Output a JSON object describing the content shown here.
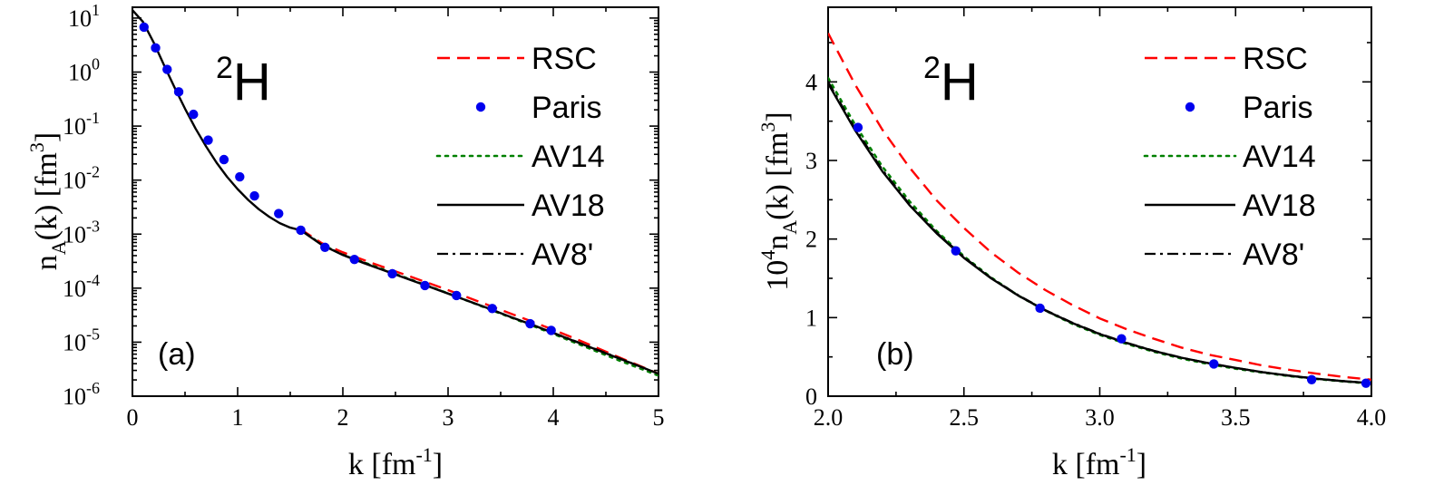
{
  "chart_data": [
    {
      "type": "line",
      "panel_label": "(a)",
      "nucleus": {
        "mass": "2",
        "symbol": "H"
      },
      "xlabel": {
        "base": "k [fm",
        "sup": "-1",
        "tail": "]"
      },
      "ylabel": {
        "parts": [
          "n",
          "A",
          "(k)  [fm",
          "3",
          "]"
        ]
      },
      "xlim": [
        0,
        5
      ],
      "ylim_log10": [
        -6,
        1.2
      ],
      "yscale": "log",
      "x_ticks": [
        "0",
        "1",
        "2",
        "3",
        "4",
        "5"
      ],
      "y_ticks": [
        {
          "base": "10",
          "exp": "1"
        },
        {
          "base": "10",
          "exp": "0"
        },
        {
          "base": "10",
          "exp": "-1"
        },
        {
          "base": "10",
          "exp": "-2"
        },
        {
          "base": "10",
          "exp": "-3"
        },
        {
          "base": "10",
          "exp": "-4"
        },
        {
          "base": "10",
          "exp": "-5"
        },
        {
          "base": "10",
          "exp": "-6"
        }
      ],
      "legend_position": "top-right",
      "series": [
        {
          "name": "RSC",
          "style": "dashed",
          "color": "#ff0000",
          "x": [
            1.6,
            1.8,
            2.0,
            2.2,
            2.4,
            2.6,
            2.8,
            3.0,
            3.2,
            3.4,
            3.6,
            3.8,
            4.0,
            4.2,
            4.4,
            4.6,
            4.8,
            5.0
          ],
          "y": [
            0.00123,
            0.00068,
            0.00046,
            0.00033,
            0.00024,
            0.000175,
            0.000127,
            9.2e-05,
            6.6e-05,
            4.7e-05,
            3.35e-05,
            2.4e-05,
            1.7e-05,
            1.18e-05,
            8.1e-06,
            5.5e-06,
            3.8e-06,
            2.6e-06
          ]
        },
        {
          "name": "Paris",
          "style": "dots",
          "color": "#0000ee",
          "x": [
            0.11,
            0.22,
            0.33,
            0.44,
            0.58,
            0.72,
            0.87,
            1.02,
            1.16,
            1.39,
            1.6,
            1.83,
            2.11,
            2.47,
            2.78,
            3.08,
            3.42,
            3.78,
            3.98
          ],
          "y": [
            6.8,
            2.8,
            1.12,
            0.43,
            0.165,
            0.055,
            0.024,
            0.0115,
            0.0051,
            0.0024,
            0.00118,
            0.00057,
            0.00034,
            0.000185,
            0.000112,
            7.3e-05,
            4.2e-05,
            2.2e-05,
            1.65e-05
          ]
        },
        {
          "name": "AV14",
          "style": "dotted",
          "color": "#008000",
          "x": [
            1.6,
            1.8,
            2.0,
            2.2,
            2.4,
            2.6,
            2.8,
            3.0,
            3.2,
            3.4,
            3.6,
            3.8,
            4.0,
            4.2,
            4.4,
            4.6,
            4.8,
            5.0
          ],
          "y": [
            0.00119,
            0.00064,
            0.00042,
            0.0003,
            0.000215,
            0.000155,
            0.000112,
            8e-05,
            5.7e-05,
            4e-05,
            2.85e-05,
            2.02e-05,
            1.42e-05,
            9.9e-06,
            6.9e-06,
            4.8e-06,
            3.4e-06,
            2.4e-06
          ]
        },
        {
          "name": "AV18",
          "style": "solid",
          "color": "#000000",
          "x": [
            0.0,
            0.1,
            0.2,
            0.3,
            0.4,
            0.5,
            0.6,
            0.7,
            0.8,
            0.9,
            1.0,
            1.1,
            1.2,
            1.3,
            1.4,
            1.5,
            1.6,
            1.8,
            2.0,
            2.2,
            2.4,
            2.6,
            2.8,
            3.0,
            3.2,
            3.4,
            3.6,
            3.8,
            4.0,
            4.2,
            4.4,
            4.6,
            4.8,
            5.0
          ],
          "y": [
            14,
            8.5,
            3.6,
            1.35,
            0.52,
            0.21,
            0.09,
            0.042,
            0.021,
            0.0115,
            0.0068,
            0.0043,
            0.0029,
            0.0021,
            0.0016,
            0.00132,
            0.00118,
            0.00063,
            0.00041,
            0.00029,
            0.00021,
            0.000152,
            0.00011,
            7.9e-05,
            5.7e-05,
            4.1e-05,
            2.9e-05,
            2.1e-05,
            1.48e-05,
            1.05e-05,
            7.4e-06,
            5.2e-06,
            3.7e-06,
            2.6e-06
          ]
        },
        {
          "name": "AV8'",
          "style": "dashdot",
          "color": "#000000",
          "x": [
            1.6,
            1.8,
            2.0,
            2.2,
            2.4,
            2.6,
            2.8,
            3.0,
            3.2,
            3.4,
            3.6,
            3.8,
            4.0,
            4.2,
            4.4,
            4.6,
            4.8,
            5.0
          ],
          "y": [
            0.0012,
            0.00064,
            0.000415,
            0.000295,
            0.000212,
            0.000153,
            0.000111,
            8e-05,
            5.7e-05,
            4.1e-05,
            2.9e-05,
            2.1e-05,
            1.49e-05,
            1.06e-05,
            7.5e-06,
            5.3e-06,
            3.7e-06,
            2.6e-06
          ]
        }
      ]
    },
    {
      "type": "line",
      "panel_label": "(b)",
      "nucleus": {
        "mass": "2",
        "symbol": "H"
      },
      "xlabel": {
        "base": "k [fm",
        "sup": "-1",
        "tail": "]"
      },
      "ylabel": {
        "parts": [
          "10",
          "4",
          "n",
          "A",
          "(k)  [fm",
          "3",
          "]"
        ]
      },
      "xlim": [
        2.0,
        4.0
      ],
      "ylim": [
        0,
        4.95
      ],
      "yscale": "linear",
      "x_ticks": [
        "2.0",
        "2.5",
        "3.0",
        "3.5",
        "4.0"
      ],
      "y_ticks": [
        "0",
        "1",
        "2",
        "3",
        "4"
      ],
      "legend_position": "top-right",
      "series": [
        {
          "name": "RSC",
          "style": "dashed",
          "color": "#ff0000",
          "x": [
            2.0,
            2.1,
            2.2,
            2.3,
            2.4,
            2.5,
            2.6,
            2.7,
            2.8,
            2.9,
            3.0,
            3.1,
            3.2,
            3.3,
            3.4,
            3.5,
            3.6,
            3.7,
            3.8,
            3.9,
            4.0
          ],
          "y": [
            4.62,
            3.96,
            3.39,
            2.91,
            2.49,
            2.14,
            1.83,
            1.57,
            1.35,
            1.16,
            0.99,
            0.85,
            0.73,
            0.62,
            0.53,
            0.46,
            0.39,
            0.335,
            0.286,
            0.245,
            0.21
          ]
        },
        {
          "name": "Paris",
          "style": "dots",
          "color": "#0000ee",
          "x": [
            2.11,
            2.47,
            2.78,
            3.08,
            3.42,
            3.78,
            3.98
          ],
          "y": [
            3.42,
            1.85,
            1.12,
            0.73,
            0.41,
            0.21,
            0.165
          ]
        },
        {
          "name": "AV14",
          "style": "dotted",
          "color": "#008000",
          "x": [
            2.0,
            2.1,
            2.2,
            2.3,
            2.4,
            2.5,
            2.6,
            2.7,
            2.8,
            2.9,
            3.0,
            3.1,
            3.2,
            3.3,
            3.4,
            3.5,
            3.6,
            3.7,
            3.8,
            3.9,
            4.0
          ],
          "y": [
            4.05,
            3.45,
            2.92,
            2.48,
            2.1,
            1.78,
            1.51,
            1.28,
            1.09,
            0.92,
            0.78,
            0.665,
            0.565,
            0.48,
            0.41,
            0.35,
            0.3,
            0.255,
            0.218,
            0.187,
            0.16
          ]
        },
        {
          "name": "AV18",
          "style": "solid",
          "color": "#000000",
          "x": [
            2.0,
            2.1,
            2.2,
            2.3,
            2.4,
            2.5,
            2.6,
            2.7,
            2.8,
            2.9,
            3.0,
            3.1,
            3.2,
            3.3,
            3.4,
            3.5,
            3.6,
            3.7,
            3.8,
            3.9,
            4.0
          ],
          "y": [
            3.98,
            3.38,
            2.86,
            2.43,
            2.07,
            1.76,
            1.5,
            1.28,
            1.09,
            0.93,
            0.79,
            0.675,
            0.575,
            0.49,
            0.42,
            0.36,
            0.305,
            0.26,
            0.222,
            0.19,
            0.165
          ]
        },
        {
          "name": "AV8'",
          "style": "dashdot",
          "color": "#000000",
          "x": [
            2.0,
            2.1,
            2.2,
            2.3,
            2.4,
            2.5,
            2.6,
            2.7,
            2.8,
            2.9,
            3.0,
            3.1,
            3.2,
            3.3,
            3.4,
            3.5,
            3.6,
            3.7,
            3.8,
            3.9,
            4.0
          ],
          "y": [
            4.0,
            3.4,
            2.88,
            2.44,
            2.08,
            1.77,
            1.505,
            1.285,
            1.095,
            0.935,
            0.795,
            0.678,
            0.578,
            0.492,
            0.421,
            0.36,
            0.306,
            0.261,
            0.223,
            0.191,
            0.165
          ]
        }
      ]
    }
  ]
}
